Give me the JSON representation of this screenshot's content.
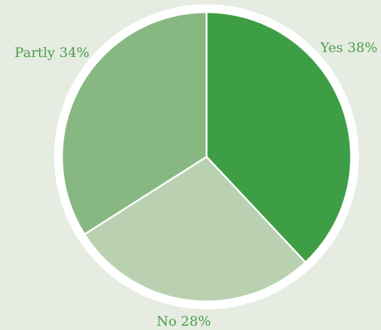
{
  "chart_data": {
    "type": "pie",
    "title": "",
    "slices": [
      {
        "label": "Yes 38%",
        "value": 38,
        "color": "#3e9e45"
      },
      {
        "label": "No 28%",
        "value": 28,
        "color": "#b9d1b0"
      },
      {
        "label": "Partly 34%",
        "value": 34,
        "color": "#88b882"
      }
    ],
    "label_color": "#4a9f4a",
    "background_color": "#e6ece2",
    "ring_color": "#ffffff"
  }
}
